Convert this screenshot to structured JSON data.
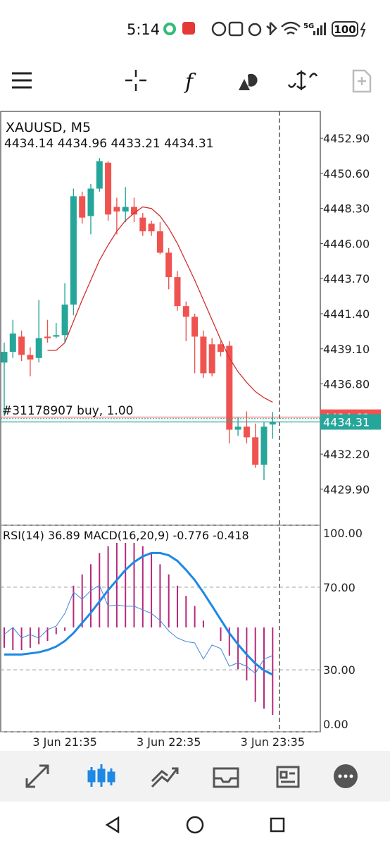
{
  "status_bar": {
    "time": "5:14",
    "network": "5G",
    "battery": "100"
  },
  "chart_data": [
    {
      "type": "candlestick",
      "title": "XAUUSD, M5",
      "categories": [
        null,
        null,
        null,
        null,
        null,
        null,
        null,
        "3 Jun 21:35",
        null,
        null,
        null,
        null,
        null,
        null,
        null,
        null,
        null,
        null,
        null,
        "3 Jun 22:35",
        null,
        null,
        null,
        null,
        null,
        null,
        null,
        null,
        null,
        null,
        null,
        "3 Jun 23:35"
      ],
      "open": [
        4438.2,
        4438.9,
        4439.9,
        4438.7,
        4438.5,
        4439.9,
        4439.9,
        4440.0,
        4442.0,
        4449.1,
        4447.8,
        4449.6,
        4451.3,
        4448.4,
        4448.1,
        4448.4,
        4447.7,
        4447.3,
        4446.8,
        4445.4,
        4443.8,
        4441.9,
        4441.2,
        4439.9,
        4439.4,
        4439.4,
        4439.3,
        4433.8,
        4434.0,
        4433.3,
        4431.5,
        4434.14
      ],
      "high": [
        4439.5,
        4441.0,
        4440.3,
        4439.2,
        4442.3,
        4441.0,
        4440.8,
        4443.4,
        4449.6,
        4449.4,
        4449.9,
        4451.6,
        4451.4,
        4449.0,
        4449.7,
        4449.0,
        4448.0,
        4447.5,
        4447.4,
        4445.7,
        4444.2,
        4442.2,
        4441.4,
        4440.3,
        4439.8,
        4439.6,
        4439.6,
        4434.6,
        4435.0,
        4434.2,
        4434.3,
        4434.96
      ],
      "low": [
        4434.7,
        4438.5,
        4438.3,
        4437.3,
        4438.2,
        4439.5,
        4439.8,
        4439.5,
        4441.3,
        4447.3,
        4446.6,
        4449.4,
        4447.5,
        4446.6,
        4447.4,
        4447.4,
        4446.5,
        4446.5,
        4445.3,
        4443.0,
        4441.6,
        4439.6,
        4437.5,
        4437.2,
        4437.3,
        4438.6,
        4432.9,
        4433.4,
        4432.9,
        4431.3,
        4430.5,
        4433.21
      ],
      "close": [
        4438.9,
        4440.1,
        4438.7,
        4438.4,
        4439.8,
        4439.8,
        4440.0,
        4442.0,
        4449.1,
        4447.7,
        4449.6,
        4451.4,
        4447.9,
        4448.1,
        4448.4,
        4447.9,
        4446.8,
        4446.8,
        4445.4,
        4443.8,
        4441.9,
        4441.2,
        4439.9,
        4437.5,
        4437.5,
        4438.9,
        4433.8,
        4434.0,
        4433.3,
        4431.5,
        4434.0,
        4434.31
      ],
      "up_color": "#26a69a",
      "down_color": "#ef5350",
      "ma": {
        "color": "#d32f2f",
        "values": [
          null,
          null,
          null,
          null,
          null,
          4439.0,
          4439.0,
          4439.5,
          4440.9,
          4442.3,
          4443.6,
          4444.9,
          4445.9,
          4446.8,
          4447.5,
          4448.0,
          4448.4,
          4448.3,
          4447.8,
          4447.0,
          4446.0,
          4444.8,
          4443.6,
          4442.3,
          4441.0,
          4439.7,
          4438.5,
          4437.6,
          4436.9,
          4436.3,
          4435.9,
          4435.6
        ]
      },
      "ask": 4434.62,
      "position_label": "#31178907 buy, 1.00",
      "ylim": [
        4427.54,
        4454.66
      ],
      "yticks": [
        {
          "value": 4452.9,
          "label": "4452.90"
        },
        {
          "value": 4450.6,
          "label": "4450.60"
        },
        {
          "value": 4448.3,
          "label": "4448.30"
        },
        {
          "value": 4446.0,
          "label": "4446.00"
        },
        {
          "value": 4443.7,
          "label": "4443.70"
        },
        {
          "value": 4441.4,
          "label": "4441.40"
        },
        {
          "value": 4439.1,
          "label": "4439.10"
        },
        {
          "value": 4436.8,
          "label": "4436.80"
        },
        {
          "value": 4432.2,
          "label": "4432.20"
        },
        {
          "value": 4429.9,
          "label": "4429.90"
        }
      ]
    },
    {
      "type": "indicator",
      "ylim": [
        0,
        100
      ],
      "yticks": [
        {
          "value": 100,
          "label": "100.00"
        },
        {
          "value": 70,
          "label": "70.00"
        },
        {
          "value": 30,
          "label": "30.00"
        },
        {
          "value": 0,
          "label": "0.00"
        }
      ],
      "rsi": {
        "name": "RSI(14)",
        "color": "#3f88d8",
        "values": [
          47.1,
          50.5,
          45.4,
          47.1,
          45.4,
          49.5,
          51.2,
          57.3,
          67.6,
          64.2,
          68.3,
          71.0,
          60.8,
          61.4,
          60.8,
          60.8,
          59.0,
          57.3,
          53.9,
          48.8,
          45.4,
          43.7,
          43.0,
          35.2,
          42.0,
          40.3,
          31.7,
          33.4,
          31.7,
          28.3,
          35.2,
          36.89
        ]
      },
      "macd": {
        "name": "MACD(16,20,9)",
        "ylim": [
          -0.925,
          0.906
        ],
        "hist_color": "#b5287e",
        "signal_color": "#1e88e5",
        "histogram": [
          -0.18,
          -0.2,
          -0.2,
          -0.18,
          -0.15,
          -0.12,
          -0.06,
          -0.03,
          0.37,
          0.47,
          0.56,
          0.66,
          0.72,
          0.75,
          0.75,
          0.75,
          0.72,
          0.66,
          0.56,
          0.47,
          0.37,
          0.28,
          0.19,
          0.06,
          0.0,
          -0.12,
          -0.25,
          -0.37,
          -0.47,
          -0.66,
          -0.72,
          -0.776
        ],
        "signal": [
          -0.24,
          -0.24,
          -0.24,
          -0.23,
          -0.22,
          -0.2,
          -0.17,
          -0.12,
          -0.05,
          0.04,
          0.13,
          0.23,
          0.33,
          0.42,
          0.51,
          0.58,
          0.63,
          0.66,
          0.66,
          0.64,
          0.59,
          0.51,
          0.42,
          0.31,
          0.19,
          0.07,
          -0.05,
          -0.15,
          -0.24,
          -0.32,
          -0.38,
          -0.418
        ]
      }
    }
  ]
}
